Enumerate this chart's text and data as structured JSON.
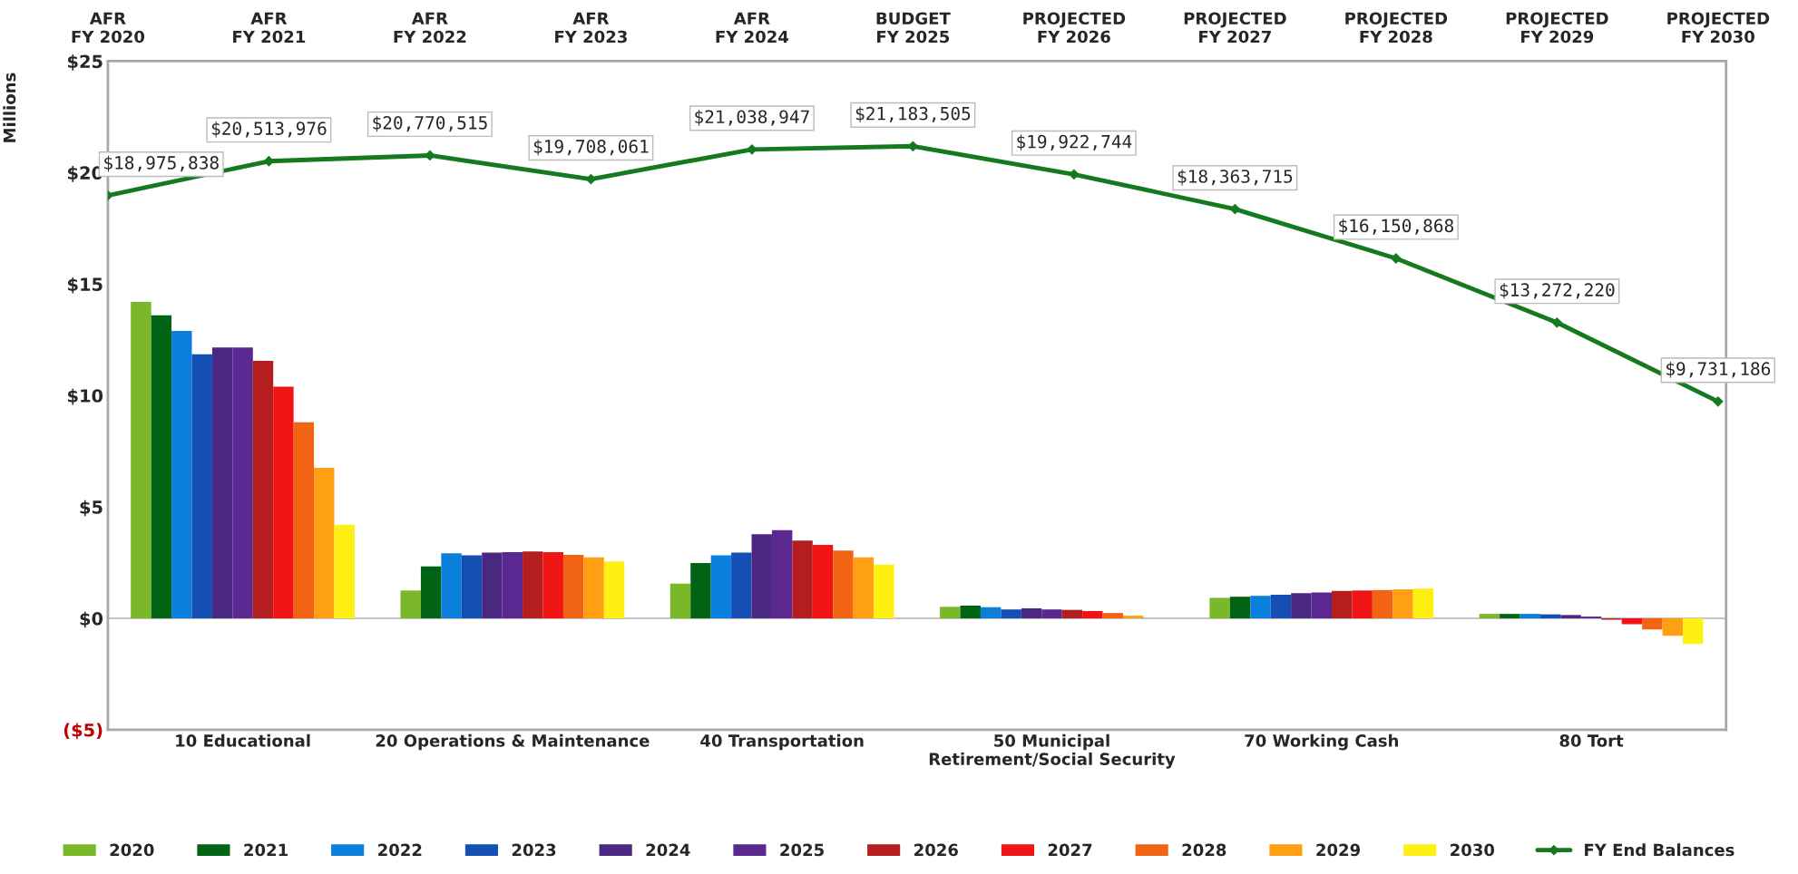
{
  "chart_data": [
    {
      "type": "line",
      "categories": [
        "AFR\nFY 2020",
        "AFR\nFY 2021",
        "AFR\nFY 2022",
        "AFR\nFY 2023",
        "AFR\nFY 2024",
        "BUDGET\nFY 2025",
        "PROJECTED\nFY 2026",
        "PROJECTED\nFY 2027",
        "PROJECTED\nFY 2028",
        "PROJECTED\nFY 2029",
        "PROJECTED\nFY 2030"
      ],
      "series": [
        {
          "name": "FY End Balances",
          "color": "#157a1e",
          "values": [
            18975838,
            20513976,
            20770515,
            19708061,
            21038947,
            21183505,
            19922744,
            18363715,
            16150868,
            13272220,
            9731186
          ],
          "value_labels": [
            "$18,975,838",
            "$20,513,976",
            "$20,770,515",
            "$19,708,061",
            "$21,038,947",
            "$21,183,505",
            "$19,922,744",
            "$18,363,715",
            "$16,150,868",
            "$13,272,220",
            "$9,731,186"
          ]
        }
      ],
      "ylim": [
        -5000000,
        25000000
      ],
      "marker": "diamond",
      "line_style": "solid",
      "tick_labels": "x",
      "legend": "bottom",
      "grid": false
    },
    {
      "type": "bar",
      "ylabel": "Millions",
      "categories": [
        "10 Educational",
        "20 Operations & Maintenance",
        "40 Transportation",
        "50 Municipal\nRetirement/Social Security",
        "70 Working Cash",
        "80 Tort"
      ],
      "series": [
        {
          "name": "2020",
          "color": "#7ab829",
          "values": [
            14.2,
            1.25,
            1.56,
            0.52,
            0.92,
            0.2
          ]
        },
        {
          "name": "2021",
          "color": "#006414",
          "values": [
            13.6,
            2.33,
            2.48,
            0.57,
            0.97,
            0.2
          ]
        },
        {
          "name": "2022",
          "color": "#0a7fdc",
          "values": [
            12.9,
            2.92,
            2.83,
            0.5,
            1.01,
            0.2
          ]
        },
        {
          "name": "2023",
          "color": "#1450b4",
          "values": [
            11.85,
            2.83,
            2.95,
            0.4,
            1.06,
            0.18
          ]
        },
        {
          "name": "2024",
          "color": "#4a2882",
          "values": [
            12.15,
            2.95,
            3.77,
            0.45,
            1.13,
            0.15
          ]
        },
        {
          "name": "2025",
          "color": "#5a2890",
          "values": [
            12.15,
            2.97,
            3.96,
            0.4,
            1.16,
            0.08
          ]
        },
        {
          "name": "2026",
          "color": "#b41e1e",
          "values": [
            11.55,
            3.0,
            3.49,
            0.38,
            1.23,
            -0.06
          ]
        },
        {
          "name": "2027",
          "color": "#f01414",
          "values": [
            10.4,
            2.97,
            3.3,
            0.33,
            1.25,
            -0.26
          ]
        },
        {
          "name": "2028",
          "color": "#f06414",
          "values": [
            8.8,
            2.85,
            3.04,
            0.24,
            1.27,
            -0.5
          ]
        },
        {
          "name": "2029",
          "color": "#ffa014",
          "values": [
            6.75,
            2.74,
            2.74,
            0.12,
            1.3,
            -0.78
          ]
        },
        {
          "name": "2030",
          "color": "#fff014",
          "values": [
            4.2,
            2.55,
            2.41,
            null,
            1.34,
            -1.15
          ]
        }
      ],
      "ylim": [
        -5,
        25
      ],
      "yticks": [
        {
          "value": 25,
          "label": "$25"
        },
        {
          "value": 20,
          "label": "$20"
        },
        {
          "value": 15,
          "label": "$15"
        },
        {
          "value": 10,
          "label": "$10"
        },
        {
          "value": 5,
          "label": "$5"
        },
        {
          "value": 0,
          "label": "$0"
        },
        {
          "value": -5,
          "label": "($5)"
        }
      ],
      "ref_lines": [
        {
          "axis": "y",
          "value": 0,
          "color": "#b0b0b0",
          "line_style": "solid"
        }
      ],
      "legend": "bottom",
      "grid": false
    }
  ]
}
